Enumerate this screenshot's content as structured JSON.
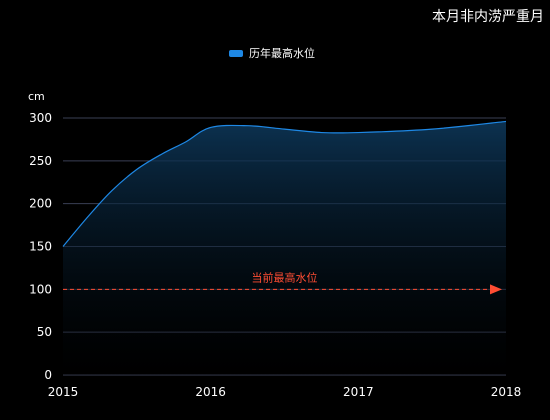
{
  "header": {
    "title": "本月非内涝严重月"
  },
  "colors": {
    "series": "#1e88e5",
    "threshold": "#ff4d33",
    "grid": "#3a3f55"
  },
  "chart_data": {
    "type": "area",
    "title": "本月非内涝严重月",
    "unit": "cm",
    "x": [
      2015.0,
      2015.17,
      2015.33,
      2015.5,
      2015.67,
      2015.83,
      2016.0,
      2016.25,
      2016.5,
      2016.75,
      2017.0,
      2017.5,
      2018.0
    ],
    "xticks": [
      "2015",
      "2016",
      "2017",
      "2018"
    ],
    "xlim": [
      2015,
      2018
    ],
    "ylim": [
      0,
      300
    ],
    "yticks": [
      "0",
      "50",
      "100",
      "150",
      "200",
      "250",
      "300"
    ],
    "series": [
      {
        "name": "历年最高水位",
        "values": [
          150,
          185,
          215,
          240,
          258,
          272,
          289,
          291,
          287,
          283,
          283,
          287,
          296
        ]
      }
    ],
    "threshold": {
      "label": "当前最高水位",
      "value": 100
    },
    "legend_position": "top-center",
    "grid": true
  }
}
